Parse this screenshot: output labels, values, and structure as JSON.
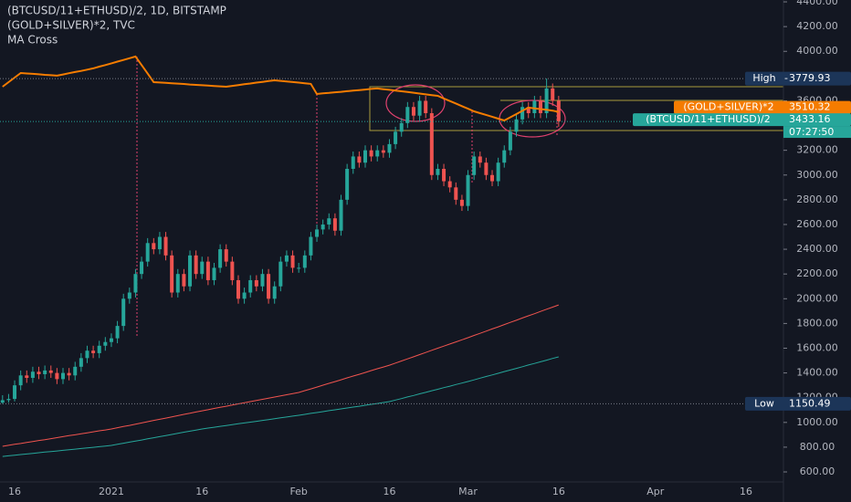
{
  "chart_data": {
    "type": "candlestick",
    "title": "(BTCUSD/11+ETHUSD)/2, 1D, BITSTAMP",
    "subtitle": "(GOLD+SILVER)*2, TVC",
    "indicator": "MA Cross",
    "symbol": "(BTCUSD/11+ETHUSD)/2",
    "countdown": "07:27:50",
    "up_color": "#26a69a",
    "down_color": "#ef5350",
    "ylim": [
      519,
      4415
    ],
    "yticks": [
      {
        "value": 600,
        "label": "600.00"
      },
      {
        "value": 800,
        "label": "800.00"
      },
      {
        "value": 1000,
        "label": "1000.00"
      },
      {
        "value": 1200,
        "label": "1200.00"
      },
      {
        "value": 1400,
        "label": "1400.00"
      },
      {
        "value": 1600,
        "label": "1600.00"
      },
      {
        "value": 1800,
        "label": "1800.00"
      },
      {
        "value": 2000,
        "label": "2000.00"
      },
      {
        "value": 2200,
        "label": "2200.00"
      },
      {
        "value": 2400,
        "label": "2400.00"
      },
      {
        "value": 2600,
        "label": "2600.00"
      },
      {
        "value": 2800,
        "label": "2800.00"
      },
      {
        "value": 3000,
        "label": "3000.00"
      },
      {
        "value": 3200,
        "label": "3200.00"
      },
      {
        "value": 3600,
        "label": "3600.00"
      },
      {
        "value": 4000,
        "label": "4000.00"
      },
      {
        "value": 4200,
        "label": "4200.00"
      },
      {
        "value": 4400,
        "label": "4400.00"
      }
    ],
    "high": {
      "label": "High",
      "value": 3779.93
    },
    "low": {
      "label": "Low",
      "value": 1150.49
    },
    "categories": [
      null,
      null,
      "16",
      null,
      null,
      null,
      null,
      null,
      null,
      null,
      null,
      null,
      null,
      null,
      null,
      null,
      null,
      null,
      "2021",
      null,
      null,
      null,
      null,
      null,
      null,
      null,
      null,
      null,
      null,
      null,
      null,
      null,
      null,
      "16",
      null,
      null,
      null,
      null,
      null,
      null,
      null,
      null,
      null,
      null,
      null,
      null,
      null,
      null,
      null,
      "Feb",
      null,
      null,
      null,
      null,
      null,
      null,
      null,
      null,
      null,
      null,
      null,
      null,
      null,
      null,
      "16",
      null,
      null,
      null,
      null,
      null,
      null,
      null,
      null,
      null,
      null,
      null,
      null,
      "Mar",
      null,
      null,
      null,
      null,
      null,
      null,
      null,
      null,
      null,
      null,
      null,
      null,
      null,
      null,
      "16",
      null,
      null,
      null,
      null,
      null,
      null,
      null,
      null,
      null,
      null,
      null,
      null,
      null,
      null,
      null,
      "Apr",
      null,
      null,
      null,
      null,
      null,
      null,
      null,
      null,
      null,
      null,
      null,
      null,
      null,
      null,
      "16"
    ],
    "open": [
      1160,
      1180,
      1190,
      1300,
      1380,
      1360,
      1410,
      1390,
      1420,
      1400,
      1350,
      1400,
      1380,
      1450,
      1520,
      1580,
      1560,
      1620,
      1650,
      1680,
      1780,
      2000,
      2050,
      2200,
      2300,
      2450,
      2400,
      2500,
      2350,
      2050,
      2200,
      2100,
      2350,
      2200,
      2300,
      2150,
      2250,
      2400,
      2300,
      2150,
      2000,
      2050,
      2150,
      2100,
      2200,
      2000,
      2100,
      2300,
      2350,
      2250,
      2250,
      2350,
      2500,
      2560,
      2600,
      2650,
      2550,
      2800,
      3050,
      3150,
      3100,
      3200,
      3150,
      3200,
      3180,
      3250,
      3350,
      3420,
      3550,
      3480,
      3600,
      3500,
      3000,
      3050,
      2950,
      2900,
      2800,
      2750,
      3000,
      3150,
      3100,
      3000,
      2950,
      3100,
      3200,
      3350,
      3450,
      3550,
      3500,
      3600,
      3500,
      3700,
      3600,
      null,
      null,
      null,
      null,
      null,
      null,
      null,
      null,
      null,
      null,
      null,
      null,
      null,
      null,
      null,
      null,
      null,
      null,
      null,
      null,
      null,
      null,
      null,
      null,
      null,
      null,
      null,
      null,
      null,
      null,
      null
    ],
    "high_values": [
      1220,
      1230,
      1340,
      1420,
      1420,
      1450,
      1450,
      1460,
      1460,
      1440,
      1440,
      1440,
      1490,
      1560,
      1620,
      1620,
      1660,
      1690,
      1720,
      1820,
      2040,
      2090,
      2240,
      2340,
      2490,
      2490,
      2540,
      2540,
      2390,
      2240,
      2240,
      2390,
      2390,
      2340,
      2340,
      2290,
      2440,
      2440,
      2340,
      2190,
      2090,
      2190,
      2190,
      2240,
      2240,
      2140,
      2340,
      2390,
      2390,
      2290,
      2390,
      2540,
      2600,
      2640,
      2690,
      2690,
      2840,
      3090,
      3190,
      3190,
      3240,
      3240,
      3240,
      3240,
      3290,
      3390,
      3460,
      3590,
      3590,
      3640,
      3640,
      3540,
      3090,
      3090,
      2990,
      2940,
      2840,
      3040,
      3190,
      3190,
      3140,
      3040,
      3140,
      3240,
      3390,
      3490,
      3590,
      3590,
      3640,
      3640,
      3779.93,
      3740,
      3640,
      null,
      null,
      null,
      null,
      null,
      null,
      null,
      null,
      null,
      null,
      null,
      null,
      null,
      null,
      null,
      null,
      null,
      null,
      null,
      null,
      null,
      null,
      null,
      null,
      null,
      null,
      null,
      null,
      null,
      null,
      null
    ],
    "low_values": [
      1150.49,
      1160,
      1170,
      1260,
      1320,
      1320,
      1350,
      1350,
      1360,
      1310,
      1310,
      1340,
      1340,
      1410,
      1480,
      1520,
      1520,
      1580,
      1610,
      1640,
      1740,
      1960,
      2010,
      2160,
      2260,
      2360,
      2360,
      2310,
      2010,
      2010,
      2060,
      2060,
      2160,
      2160,
      2110,
      2110,
      2210,
      2260,
      2110,
      1960,
      1960,
      2010,
      2060,
      2060,
      1960,
      1960,
      2060,
      2260,
      2210,
      2210,
      2210,
      2310,
      2460,
      2520,
      2560,
      2510,
      2510,
      2760,
      3010,
      3060,
      3060,
      3110,
      3110,
      3140,
      3140,
      3210,
      3310,
      3380,
      3440,
      3440,
      3460,
      2960,
      2960,
      2910,
      2860,
      2760,
      2710,
      2710,
      2960,
      3060,
      2960,
      2910,
      2910,
      3060,
      3160,
      3310,
      3410,
      3460,
      3460,
      3460,
      3460,
      3560,
      3390,
      null,
      null,
      null,
      null,
      null,
      null,
      null,
      null,
      null,
      null,
      null,
      null,
      null,
      null,
      null,
      null,
      null,
      null,
      null,
      null,
      null,
      null,
      null,
      null,
      null,
      null,
      null,
      null,
      null,
      null,
      null
    ],
    "close": [
      1180,
      1190,
      1300,
      1380,
      1360,
      1410,
      1390,
      1420,
      1400,
      1350,
      1400,
      1380,
      1450,
      1520,
      1580,
      1560,
      1620,
      1650,
      1680,
      1780,
      2000,
      2050,
      2200,
      2300,
      2450,
      2400,
      2500,
      2350,
      2050,
      2200,
      2100,
      2350,
      2200,
      2300,
      2150,
      2250,
      2400,
      2300,
      2150,
      2000,
      2050,
      2150,
      2100,
      2200,
      2000,
      2100,
      2300,
      2350,
      2250,
      2250,
      2350,
      2500,
      2560,
      2600,
      2650,
      2550,
      2800,
      3050,
      3150,
      3100,
      3200,
      3150,
      3200,
      3180,
      3250,
      3350,
      3420,
      3550,
      3480,
      3600,
      3500,
      3000,
      3050,
      2950,
      2900,
      2800,
      2750,
      3000,
      3150,
      3100,
      3000,
      2950,
      3100,
      3200,
      3350,
      3450,
      3550,
      3500,
      3600,
      3500,
      3700,
      3600,
      3433.16,
      null,
      null,
      null,
      null,
      null,
      null,
      null,
      null,
      null,
      null,
      null,
      null,
      null,
      null,
      null,
      null,
      null,
      null,
      null,
      null,
      null,
      null,
      null,
      null,
      null,
      null,
      null,
      null,
      null,
      null,
      null
    ],
    "series": [
      {
        "name": "(GOLD+SILVER)*2",
        "color": "#f57c00",
        "values": [
          3714,
          3751,
          3788,
          3825,
          3821,
          3818,
          3814,
          3810,
          3807,
          3803,
          3813,
          3823,
          3833,
          3842,
          3852,
          3862,
          3876,
          3889,
          3903,
          3917,
          3930,
          3944,
          3958,
          3889,
          3820,
          3751,
          3748,
          3745,
          3742,
          3739,
          3736,
          3732,
          3729,
          3726,
          3723,
          3720,
          3717,
          3714,
          3721,
          3727,
          3734,
          3740,
          3747,
          3753,
          3760,
          3766,
          3761,
          3756,
          3752,
          3747,
          3742,
          3737,
          3655,
          3660,
          3664,
          3669,
          3673,
          3678,
          3682,
          3687,
          3691,
          3696,
          3700,
          3694,
          3689,
          3683,
          3677,
          3671,
          3665,
          3659,
          3652,
          3646,
          3640,
          3619,
          3598,
          3578,
          3557,
          3536,
          3515,
          3500,
          3486,
          3471,
          3456,
          3441,
          3467,
          3493,
          3519,
          3545,
          3539,
          3533,
          3527,
          3521,
          3510.32,
          null,
          null,
          null,
          null,
          null,
          null,
          null,
          null,
          null,
          null,
          null,
          null,
          null,
          null,
          null,
          null,
          null,
          null,
          null,
          null,
          null,
          null,
          null,
          null,
          null,
          null,
          null,
          null,
          null,
          null,
          null
        ]
      }
    ],
    "ma_lines": [
      {
        "color": "#f0544f",
        "values": [
          807,
          815,
          823,
          830,
          838,
          846,
          854,
          861,
          869,
          877,
          885,
          893,
          900,
          908,
          916,
          924,
          932,
          939,
          947,
          957,
          967,
          976,
          986,
          996,
          1006,
          1016,
          1025,
          1035,
          1045,
          1055,
          1065,
          1074,
          1084,
          1094,
          1103,
          1113,
          1122,
          1131,
          1140,
          1150,
          1159,
          1168,
          1177,
          1187,
          1196,
          1205,
          1214,
          1224,
          1233,
          1242,
          1257,
          1271,
          1286,
          1301,
          1316,
          1330,
          1345,
          1360,
          1375,
          1389,
          1404,
          1419,
          1434,
          1448,
          1463,
          1480,
          1497,
          1514,
          1531,
          1548,
          1565,
          1583,
          1600,
          1617,
          1634,
          1651,
          1668,
          1685,
          1703,
          1720,
          1738,
          1756,
          1773,
          1791,
          1809,
          1826,
          1844,
          1862,
          1879,
          1897,
          1915,
          1932,
          1950,
          null,
          null,
          null,
          null,
          null,
          null,
          null,
          null,
          null,
          null,
          null,
          null,
          null,
          null,
          null,
          null,
          null,
          null,
          null,
          null,
          null,
          null,
          null,
          null,
          null,
          null,
          null,
          null,
          null,
          null,
          null
        ]
      },
      {
        "color": "#26a69a",
        "values": [
          725,
          730,
          735,
          740,
          745,
          750,
          755,
          760,
          765,
          769,
          774,
          779,
          784,
          789,
          794,
          799,
          804,
          809,
          814,
          823,
          832,
          841,
          849,
          858,
          867,
          876,
          885,
          894,
          903,
          912,
          921,
          929,
          938,
          947,
          954,
          961,
          968,
          975,
          982,
          989,
          996,
          1002,
          1009,
          1016,
          1023,
          1030,
          1037,
          1044,
          1051,
          1058,
          1065,
          1073,
          1080,
          1087,
          1095,
          1102,
          1109,
          1117,
          1124,
          1131,
          1139,
          1146,
          1153,
          1161,
          1168,
          1181,
          1193,
          1206,
          1218,
          1231,
          1243,
          1256,
          1268,
          1281,
          1293,
          1306,
          1318,
          1331,
          1344,
          1358,
          1371,
          1384,
          1397,
          1411,
          1424,
          1437,
          1450,
          1464,
          1477,
          1490,
          1503,
          1517,
          1530,
          null,
          null,
          null,
          null,
          null,
          null,
          null,
          null,
          null,
          null,
          null,
          null,
          null,
          null,
          null,
          null,
          null,
          null,
          null,
          null,
          null,
          null,
          null,
          null,
          null,
          null,
          null,
          null,
          null,
          null,
          null
        ]
      }
    ]
  }
}
